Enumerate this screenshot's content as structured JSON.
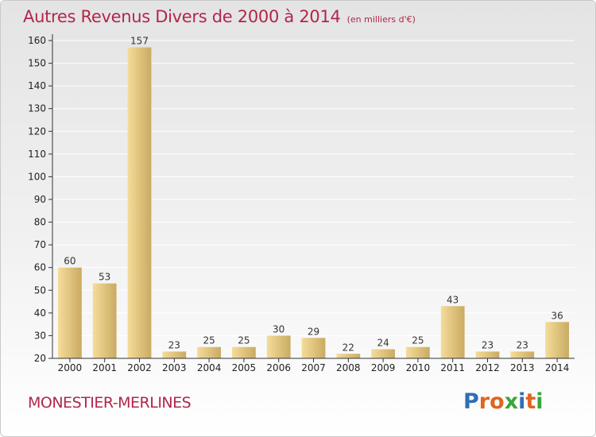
{
  "header": {
    "title": "Autres Revenus Divers de 2000 à 2014",
    "subtitle": "(en milliers d'€)"
  },
  "footer": {
    "commune": "MONESTIER-MERLINES",
    "logo": {
      "letters": [
        "P",
        "r",
        "o",
        "x",
        "i",
        "t",
        "i"
      ],
      "colors": [
        "#2f6fb5",
        "#e0641f",
        "#e0641f",
        "#3aa63a",
        "#2f6fb5",
        "#e0641f",
        "#3aa63a"
      ]
    }
  },
  "chart_data": {
    "type": "bar",
    "categories": [
      "2000",
      "2001",
      "2002",
      "2003",
      "2004",
      "2005",
      "2006",
      "2007",
      "2008",
      "2009",
      "2010",
      "2011",
      "2012",
      "2013",
      "2014"
    ],
    "values": [
      60,
      53,
      157,
      23,
      25,
      25,
      30,
      29,
      22,
      24,
      25,
      43,
      23,
      23,
      36
    ],
    "data_labels": [
      "60",
      "53",
      "157",
      "23",
      "25",
      "25",
      "30",
      "29",
      "22",
      "24",
      "25",
      "43",
      "23",
      "23",
      "36"
    ],
    "title": "Autres Revenus Divers de 2000 à 2014",
    "ylim": [
      20,
      160
    ],
    "yticks": [
      20,
      30,
      40,
      50,
      60,
      70,
      80,
      90,
      100,
      110,
      120,
      130,
      140,
      150,
      160
    ],
    "ytick_labels": [
      "20",
      "30",
      "40",
      "50",
      "60",
      "70",
      "80",
      "90",
      "100",
      "110",
      "120",
      "130",
      "140",
      "150",
      "160"
    ],
    "grid": true,
    "legend": "none",
    "colors": {
      "bar_light": "#f5dc9a",
      "bar_dark": "#c9ab62",
      "title": "#b2264c",
      "axis": "#333333",
      "grid": "#ffffff"
    }
  }
}
